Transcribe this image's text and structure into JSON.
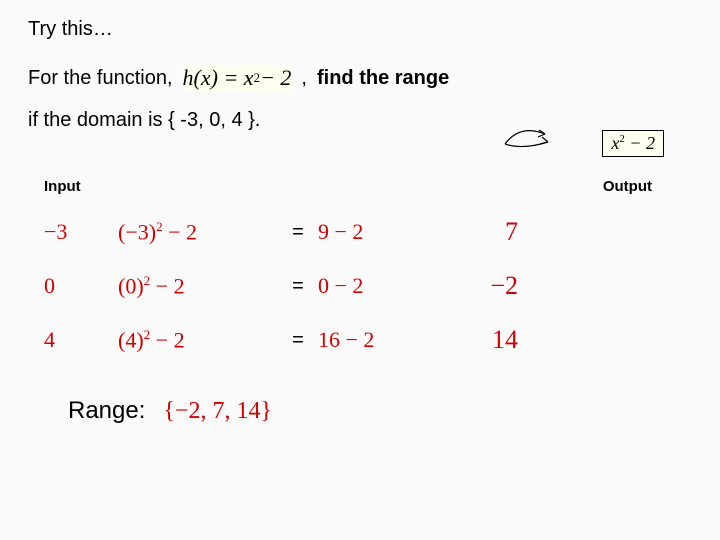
{
  "title": "Try this…",
  "line1_a": "For the function,",
  "function_expr_html": "h(x) = x<sup>2</sup> − 2",
  "line1_b": ", ",
  "line1_c": "find the range",
  "line2": "if the domain is { -3, 0, 4 }.",
  "mini_expr_html": "x<sup>2</sup> − 2",
  "headers": {
    "input": "Input",
    "output": "Output"
  },
  "rows": [
    {
      "input": "−3",
      "expr_html": "(−3)<sup>2</sup> − 2",
      "mid": "9 − 2",
      "out": "7"
    },
    {
      "input": "0",
      "expr_html": "(0)<sup>2</sup> − 2",
      "mid": "0 − 2",
      "out": "−2"
    },
    {
      "input": "4",
      "expr_html": "(4)<sup>2</sup> − 2",
      "mid": "16 − 2",
      "out": "14"
    }
  ],
  "eq": "=",
  "range_label": "Range:",
  "range_value": "{−2, 7, 14}",
  "colors": {
    "red": "#d40000",
    "bg": "#fafafa",
    "highlight": "#fffff0",
    "text": "#000000"
  },
  "fonts": {
    "body": "Arial",
    "math": "Times New Roman",
    "title_size_pt": 20,
    "header_size_pt": 15,
    "row_size_pt": 22,
    "out_size_pt": 26,
    "range_size_pt": 24
  }
}
